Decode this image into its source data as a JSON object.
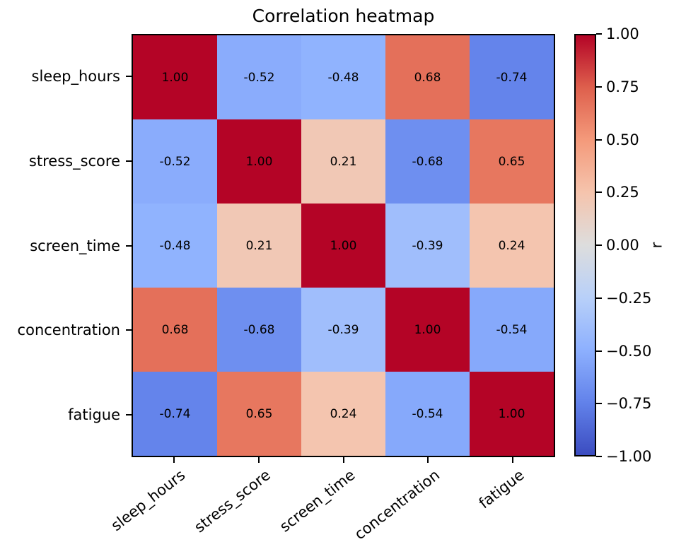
{
  "figure": {
    "title": "Correlation heatmap",
    "background": "#ffffff"
  },
  "chart_data": {
    "type": "heatmap",
    "title": "Correlation heatmap",
    "variables": [
      "sleep_hours",
      "stress_score",
      "screen_time",
      "concentration",
      "fatigue"
    ],
    "matrix": [
      [
        1.0,
        -0.52,
        -0.48,
        0.68,
        -0.74
      ],
      [
        -0.52,
        1.0,
        0.21,
        -0.68,
        0.65
      ],
      [
        -0.48,
        0.21,
        1.0,
        -0.39,
        0.24
      ],
      [
        0.68,
        -0.68,
        -0.39,
        1.0,
        -0.54
      ],
      [
        -0.74,
        0.65,
        0.24,
        -0.54,
        1.0
      ]
    ],
    "value_decimals": 2,
    "cell_text_color": "#000000",
    "axis_color": "#000000",
    "colormap": "coolwarm",
    "colormap_stops": [
      {
        "t": 0.0,
        "rgb": [
          59,
          76,
          192
        ]
      },
      {
        "t": 0.125,
        "rgb": [
          98,
          130,
          234
        ]
      },
      {
        "t": 0.25,
        "rgb": [
          141,
          176,
          254
        ]
      },
      {
        "t": 0.375,
        "rgb": [
          184,
          208,
          249
        ]
      },
      {
        "t": 0.5,
        "rgb": [
          221,
          221,
          221
        ]
      },
      {
        "t": 0.625,
        "rgb": [
          245,
          196,
          173
        ]
      },
      {
        "t": 0.75,
        "rgb": [
          244,
          154,
          123
        ]
      },
      {
        "t": 0.875,
        "rgb": [
          222,
          96,
          77
        ]
      },
      {
        "t": 1.0,
        "rgb": [
          180,
          4,
          38
        ]
      }
    ],
    "colorbar": {
      "label": "r",
      "tick_values": [
        1.0,
        0.75,
        0.5,
        0.25,
        0.0,
        -0.25,
        -0.5,
        -0.75,
        -1.0
      ],
      "range": [
        -1,
        1
      ],
      "position": "right"
    },
    "grid": false,
    "legend": false
  }
}
